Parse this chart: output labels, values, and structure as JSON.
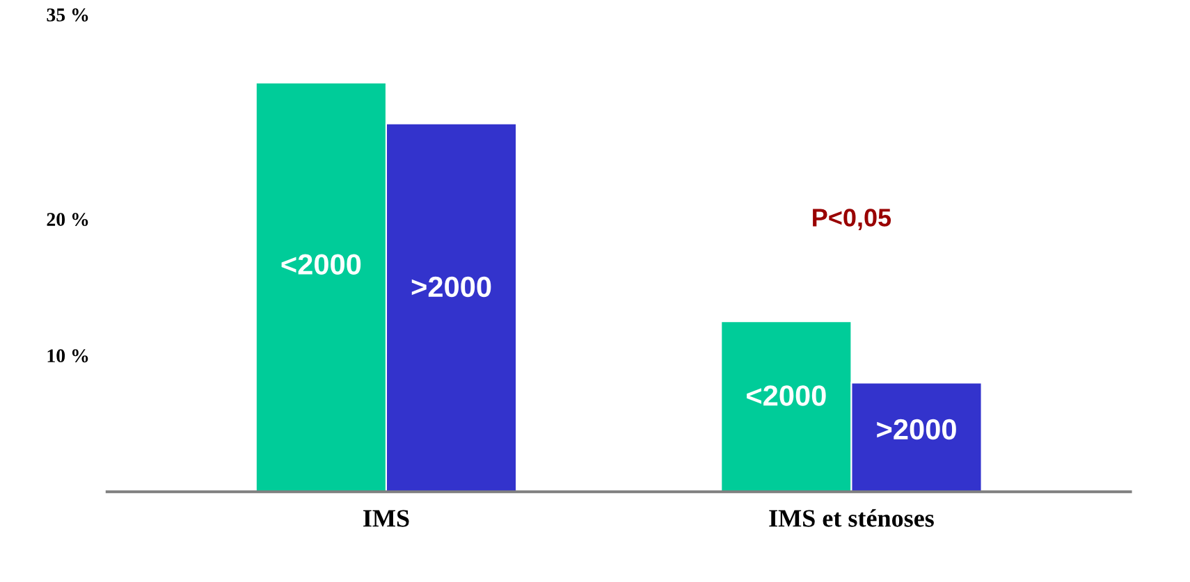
{
  "chart_data": {
    "type": "bar",
    "categories": [
      "IMS",
      "IMS et sténoses"
    ],
    "series": [
      {
        "name": "<2000",
        "color": "#00cc99",
        "values": [
          30,
          12.5
        ]
      },
      {
        "name": ">2000",
        "color": "#3333cc",
        "values": [
          27,
          8
        ]
      }
    ],
    "ylim": [
      0,
      35
    ],
    "yticks": [
      {
        "value": 10,
        "label": "10 %"
      },
      {
        "value": 20,
        "label": "20 %"
      },
      {
        "value": 35,
        "label": "35 %"
      }
    ],
    "annotations": [
      "P<0,05"
    ],
    "grid": false,
    "legend": false
  }
}
